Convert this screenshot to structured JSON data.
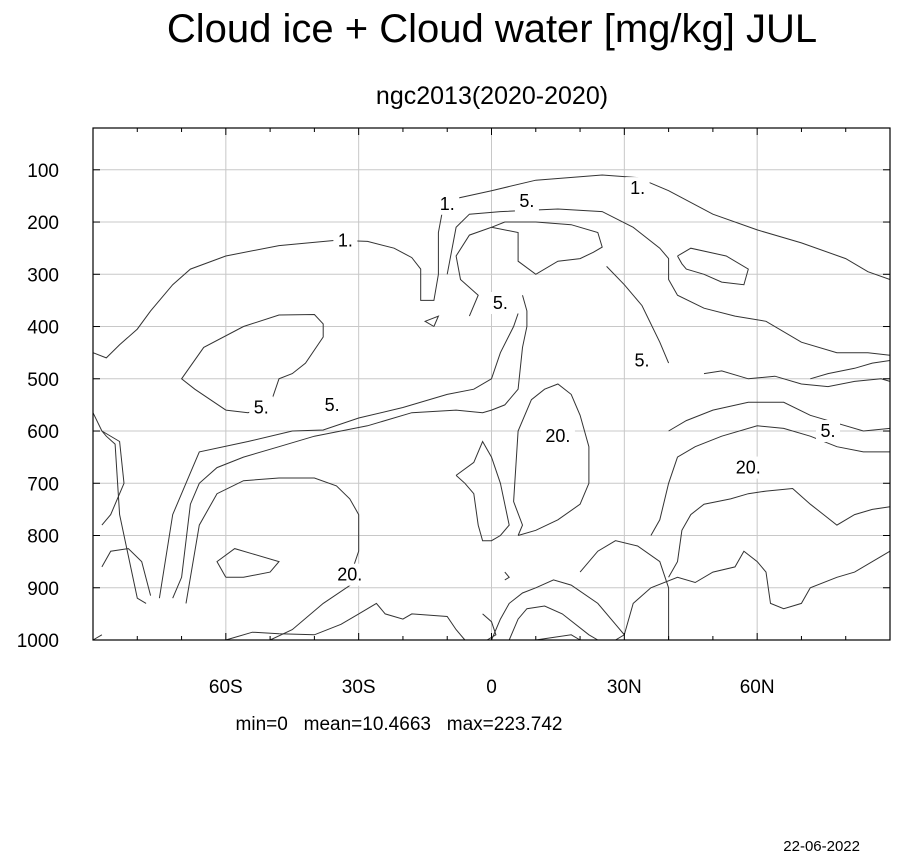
{
  "chart_data": {
    "type": "contour",
    "title": "Cloud ice + Cloud water [mg/kg] JUL",
    "subtitle": "ngc2013(2020-2020)",
    "x_axis": {
      "range": [
        -90,
        90
      ],
      "ticks": [
        -60,
        -30,
        0,
        30,
        60
      ],
      "tick_labels": [
        "60S",
        "30S",
        "0",
        "30N",
        "60N"
      ]
    },
    "y_axis": {
      "range": [
        1000,
        20
      ],
      "reversed": true,
      "ticks": [
        100,
        200,
        300,
        400,
        500,
        600,
        700,
        800,
        900,
        1000
      ],
      "tick_labels": [
        "100",
        "200",
        "300",
        "400",
        "500",
        "600",
        "700",
        "800",
        "900",
        "1000"
      ]
    },
    "grid": true,
    "contour_levels": [
      1,
      5,
      20
    ],
    "contour_labels": [
      {
        "text": "1.",
        "lat": -33,
        "p": 235
      },
      {
        "text": "1.",
        "lat": -10,
        "p": 165
      },
      {
        "text": "1.",
        "lat": 33,
        "p": 135
      },
      {
        "text": "5.",
        "lat": 8,
        "p": 160
      },
      {
        "text": "5.",
        "lat": 2,
        "p": 355
      },
      {
        "text": "5.",
        "lat": 34,
        "p": 465
      },
      {
        "text": "5.",
        "lat": 76,
        "p": 600
      },
      {
        "text": "5.",
        "lat": -52,
        "p": 555
      },
      {
        "text": "5.",
        "lat": -36,
        "p": 550
      },
      {
        "text": "20.",
        "lat": 15,
        "p": 610
      },
      {
        "text": "20.",
        "lat": 58,
        "p": 670
      },
      {
        "text": "20.",
        "lat": -32,
        "p": 875
      }
    ],
    "contour_lines": [
      [
        [
          -90,
          450
        ],
        [
          -87,
          460
        ],
        [
          -84,
          435
        ],
        [
          -80,
          405
        ],
        [
          -77,
          370
        ],
        [
          -72,
          320
        ],
        [
          -68,
          290
        ],
        [
          -60,
          265
        ],
        [
          -48,
          245
        ],
        [
          -35,
          235
        ],
        [
          -28,
          237
        ],
        [
          -22,
          250
        ],
        [
          -18,
          268
        ],
        [
          -16,
          290
        ],
        [
          -16,
          350
        ],
        [
          -13,
          350
        ],
        [
          -12,
          300
        ],
        [
          -12,
          220
        ],
        [
          -11,
          175
        ],
        [
          -8,
          155
        ],
        [
          0,
          140
        ],
        [
          10,
          120
        ],
        [
          25,
          110
        ],
        [
          33,
          115
        ],
        [
          40,
          140
        ],
        [
          50,
          185
        ],
        [
          60,
          215
        ],
        [
          70,
          240
        ],
        [
          80,
          270
        ],
        [
          85,
          295
        ],
        [
          90,
          310
        ]
      ],
      [
        [
          -13,
          400
        ],
        [
          -12,
          380
        ],
        [
          -15,
          390
        ],
        [
          -13,
          400
        ]
      ],
      [
        [
          -60,
          560
        ],
        [
          -67,
          520
        ],
        [
          -70,
          500
        ],
        [
          -65,
          440
        ],
        [
          -56,
          400
        ],
        [
          -48,
          378
        ],
        [
          -40,
          377
        ],
        [
          -38,
          395
        ],
        [
          -38,
          420
        ],
        [
          -42,
          470
        ],
        [
          -45,
          490
        ],
        [
          -48,
          500
        ],
        [
          -50,
          550
        ],
        [
          -55,
          565
        ],
        [
          -60,
          560
        ]
      ],
      [
        [
          -10,
          300
        ],
        [
          -8,
          210
        ],
        [
          -5,
          185
        ],
        [
          2,
          180
        ],
        [
          15,
          175
        ],
        [
          25,
          180
        ],
        [
          32,
          210
        ],
        [
          38,
          250
        ],
        [
          40,
          270
        ],
        [
          40,
          310
        ],
        [
          42,
          340
        ],
        [
          48,
          365
        ],
        [
          55,
          380
        ],
        [
          62,
          390
        ],
        [
          70,
          430
        ],
        [
          78,
          450
        ],
        [
          85,
          450
        ],
        [
          90,
          455
        ]
      ],
      [
        [
          -5,
          380
        ],
        [
          -3,
          340
        ],
        [
          -7,
          310
        ],
        [
          -8,
          265
        ],
        [
          -5,
          225
        ],
        [
          0,
          210
        ],
        [
          6,
          220
        ],
        [
          6,
          275
        ],
        [
          10,
          300
        ],
        [
          15,
          275
        ],
        [
          20,
          270
        ],
        [
          23,
          258
        ],
        [
          25,
          248
        ],
        [
          24,
          220
        ],
        [
          18,
          205
        ],
        [
          10,
          200
        ],
        [
          3,
          200
        ],
        [
          0,
          210
        ]
      ],
      [
        [
          26,
          285
        ],
        [
          30,
          320
        ],
        [
          34,
          360
        ],
        [
          38,
          430
        ],
        [
          40,
          470
        ]
      ],
      [
        [
          42,
          265
        ],
        [
          45,
          250
        ],
        [
          53,
          265
        ],
        [
          58,
          290
        ],
        [
          57,
          320
        ],
        [
          52,
          315
        ],
        [
          48,
          300
        ],
        [
          44,
          290
        ],
        [
          43,
          280
        ],
        [
          42,
          265
        ]
      ],
      [
        [
          -90,
          565
        ],
        [
          -88,
          600
        ],
        [
          -87,
          610
        ],
        [
          -85,
          625
        ],
        [
          -84,
          760
        ],
        [
          -80,
          920
        ],
        [
          -78,
          930
        ]
      ],
      [
        [
          -88,
          600
        ],
        [
          -84,
          620
        ],
        [
          -83,
          700
        ],
        [
          -86,
          760
        ],
        [
          -88,
          780
        ]
      ],
      [
        [
          -88,
          860
        ],
        [
          -86,
          830
        ],
        [
          -82,
          825
        ],
        [
          -79,
          850
        ],
        [
          -77,
          915
        ]
      ],
      [
        [
          -72,
          920
        ],
        [
          -70,
          880
        ],
        [
          -68,
          740
        ],
        [
          -66,
          700
        ],
        [
          -62,
          670
        ],
        [
          -56,
          650
        ],
        [
          -48,
          630
        ],
        [
          -40,
          610
        ],
        [
          -28,
          590
        ],
        [
          -18,
          565
        ],
        [
          -8,
          560
        ],
        [
          -2,
          565
        ],
        [
          0,
          560
        ],
        [
          3,
          550
        ],
        [
          6,
          520
        ],
        [
          7,
          440
        ],
        [
          8,
          400
        ],
        [
          8,
          370
        ],
        [
          7,
          340
        ]
      ],
      [
        [
          -75,
          920
        ],
        [
          -72,
          760
        ],
        [
          -68,
          680
        ],
        [
          -66,
          640
        ],
        [
          -55,
          620
        ],
        [
          -45,
          600
        ],
        [
          -38,
          598
        ],
        [
          -30,
          575
        ],
        [
          -20,
          555
        ],
        [
          -10,
          530
        ],
        [
          -4,
          520
        ],
        [
          0,
          500
        ],
        [
          2,
          450
        ],
        [
          5,
          400
        ],
        [
          6,
          375
        ]
      ],
      [
        [
          -69,
          930
        ],
        [
          -66,
          780
        ],
        [
          -62,
          720
        ],
        [
          -56,
          695
        ],
        [
          -48,
          690
        ],
        [
          -40,
          690
        ],
        [
          -35,
          705
        ],
        [
          -32,
          730
        ],
        [
          -30,
          760
        ],
        [
          -30,
          830
        ],
        [
          -32,
          880
        ],
        [
          -31,
          890
        ],
        [
          -38,
          930
        ],
        [
          -45,
          980
        ],
        [
          -50,
          1000
        ]
      ],
      [
        [
          -60,
          880
        ],
        [
          -62,
          850
        ],
        [
          -58,
          825
        ],
        [
          -54,
          835
        ],
        [
          -48,
          850
        ],
        [
          -50,
          870
        ],
        [
          -56,
          880
        ],
        [
          -60,
          880
        ]
      ],
      [
        [
          -60,
          1000
        ],
        [
          -54,
          985
        ],
        [
          -48,
          988
        ],
        [
          -40,
          990
        ],
        [
          -34,
          970
        ],
        [
          -30,
          950
        ],
        [
          -26,
          930
        ],
        [
          -24,
          950
        ],
        [
          -20,
          960
        ],
        [
          -18,
          950
        ],
        [
          -10,
          955
        ],
        [
          -8,
          980
        ],
        [
          -6,
          1000
        ]
      ],
      [
        [
          -8,
          685
        ],
        [
          -4,
          660
        ],
        [
          -2,
          620
        ],
        [
          0,
          650
        ],
        [
          2,
          700
        ],
        [
          3,
          740
        ],
        [
          4,
          780
        ],
        [
          2,
          800
        ],
        [
          0,
          810
        ],
        [
          -2,
          810
        ],
        [
          -3,
          780
        ],
        [
          -4,
          720
        ],
        [
          -6,
          700
        ],
        [
          -8,
          685
        ]
      ],
      [
        [
          -2,
          950
        ],
        [
          0,
          965
        ],
        [
          1,
          990
        ],
        [
          -1,
          1000
        ]
      ],
      [
        [
          3,
          870
        ],
        [
          4,
          880
        ],
        [
          3,
          885
        ]
      ],
      [
        [
          6,
          800
        ],
        [
          7,
          780
        ],
        [
          5,
          735
        ],
        [
          6,
          600
        ],
        [
          9,
          540
        ],
        [
          12,
          520
        ],
        [
          15,
          510
        ],
        [
          18,
          530
        ],
        [
          20,
          570
        ],
        [
          22,
          630
        ],
        [
          22,
          700
        ],
        [
          20,
          740
        ],
        [
          15,
          770
        ],
        [
          10,
          790
        ],
        [
          6,
          800
        ]
      ],
      [
        [
          0,
          1000
        ],
        [
          2,
          960
        ],
        [
          4,
          930
        ],
        [
          7,
          910
        ],
        [
          10,
          900
        ],
        [
          14,
          885
        ],
        [
          18,
          895
        ],
        [
          24,
          930
        ],
        [
          28,
          970
        ],
        [
          30,
          990
        ],
        [
          28,
          1000
        ]
      ],
      [
        [
          -90,
          1000
        ],
        [
          -88,
          990
        ]
      ],
      [
        [
          4,
          1000
        ],
        [
          6,
          960
        ],
        [
          8,
          940
        ],
        [
          12,
          935
        ],
        [
          16,
          950
        ],
        [
          22,
          990
        ],
        [
          24,
          1000
        ]
      ],
      [
        [
          10,
          1000
        ],
        [
          14,
          995
        ],
        [
          18,
          990
        ],
        [
          20,
          1000
        ]
      ],
      [
        [
          20,
          870
        ],
        [
          24,
          830
        ],
        [
          28,
          810
        ],
        [
          33,
          820
        ],
        [
          38,
          850
        ],
        [
          40,
          900
        ],
        [
          40,
          1000
        ]
      ],
      [
        [
          30,
          990
        ],
        [
          32,
          930
        ],
        [
          36,
          900
        ],
        [
          42,
          880
        ],
        [
          46,
          890
        ],
        [
          50,
          870
        ],
        [
          55,
          860
        ],
        [
          57,
          830
        ],
        [
          60,
          850
        ],
        [
          62,
          870
        ],
        [
          63,
          930
        ],
        [
          66,
          940
        ],
        [
          70,
          930
        ],
        [
          72,
          900
        ],
        [
          78,
          880
        ],
        [
          82,
          870
        ],
        [
          88,
          840
        ],
        [
          90,
          830
        ]
      ],
      [
        [
          40,
          880
        ],
        [
          42,
          850
        ],
        [
          43,
          790
        ],
        [
          45,
          760
        ],
        [
          48,
          740
        ],
        [
          54,
          730
        ],
        [
          58,
          720
        ],
        [
          62,
          715
        ],
        [
          68,
          710
        ],
        [
          72,
          740
        ],
        [
          75,
          760
        ],
        [
          78,
          780
        ],
        [
          82,
          760
        ],
        [
          86,
          750
        ],
        [
          90,
          745
        ]
      ],
      [
        [
          36,
          800
        ],
        [
          38,
          770
        ],
        [
          40,
          700
        ],
        [
          42,
          650
        ],
        [
          46,
          630
        ],
        [
          52,
          610
        ],
        [
          60,
          590
        ],
        [
          66,
          595
        ],
        [
          72,
          610
        ],
        [
          78,
          630
        ],
        [
          84,
          640
        ],
        [
          90,
          640
        ]
      ],
      [
        [
          40,
          600
        ],
        [
          44,
          580
        ],
        [
          50,
          560
        ],
        [
          58,
          545
        ],
        [
          66,
          545
        ],
        [
          72,
          570
        ],
        [
          78,
          585
        ],
        [
          84,
          600
        ],
        [
          90,
          595
        ]
      ],
      [
        [
          48,
          490
        ],
        [
          52,
          485
        ],
        [
          58,
          500
        ],
        [
          64,
          495
        ],
        [
          70,
          510
        ],
        [
          76,
          515
        ],
        [
          82,
          505
        ],
        [
          88,
          500
        ],
        [
          90,
          505
        ]
      ],
      [
        [
          72,
          500
        ],
        [
          76,
          490
        ],
        [
          82,
          480
        ],
        [
          86,
          470
        ],
        [
          90,
          465
        ]
      ]
    ],
    "stats": "min=0   mean=10.4663   max=223.742",
    "date": "22-06-2022"
  }
}
